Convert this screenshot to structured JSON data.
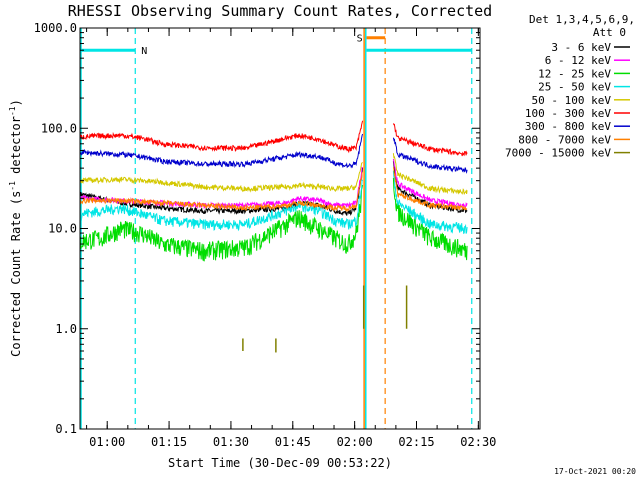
{
  "chart_data": {
    "type": "line",
    "title": "RHESSI Observing Summary Count Rates, Corrected",
    "xlabel": "Start Time (30-Dec-09 00:53:22)",
    "ylabel_main": "Corrected Count Rate (s",
    "ylabel_sup1": "-1",
    "ylabel_mid": " detector",
    "ylabel_sup2": "-1",
    "ylabel_end": ")",
    "yscale": "log",
    "ylim": [
      0.1,
      1000
    ],
    "xlim_minutes": [
      0,
      97
    ],
    "x_ticks": [
      {
        "minutes": 6.6,
        "label": "01:00"
      },
      {
        "minutes": 21.6,
        "label": "01:15"
      },
      {
        "minutes": 36.6,
        "label": "01:30"
      },
      {
        "minutes": 51.6,
        "label": "01:45"
      },
      {
        "minutes": 66.6,
        "label": "02:00"
      },
      {
        "minutes": 81.6,
        "label": "02:15"
      },
      {
        "minutes": 96.6,
        "label": "02:30"
      }
    ],
    "y_ticks": [
      {
        "value": 1000,
        "label": "1000.0"
      },
      {
        "value": 100,
        "label": "100.0"
      },
      {
        "value": 10,
        "label": "10.0"
      },
      {
        "value": 1,
        "label": "1.0"
      },
      {
        "value": 0.1,
        "label": "0.1"
      }
    ],
    "legend_header": [
      "Det 1,3,4,5,6,9,",
      "Att 0"
    ],
    "legend_position": "right",
    "series": [
      {
        "name": "3 - 6 keV",
        "color": "#000000",
        "x": [
          0,
          10,
          20,
          30,
          40,
          50,
          53,
          58,
          62,
          65,
          67,
          68.6,
          76,
          77,
          85,
          94
        ],
        "values": [
          22,
          18,
          16,
          15,
          15,
          16,
          18,
          17,
          15,
          14,
          16,
          40,
          45,
          25,
          17,
          15
        ]
      },
      {
        "name": "6 - 12 keV",
        "color": "#ff00ff",
        "x": [
          0,
          10,
          20,
          30,
          40,
          50,
          53,
          58,
          62,
          65,
          67,
          68.6,
          76,
          77,
          85,
          94
        ],
        "values": [
          20,
          19,
          18,
          17,
          17,
          18,
          20,
          19,
          17,
          17,
          18,
          45,
          50,
          28,
          19,
          17
        ]
      },
      {
        "name": "12 - 25 keV",
        "color": "#00dd00",
        "x": [
          0,
          5,
          10,
          15,
          20,
          30,
          40,
          50,
          53,
          58,
          62,
          65,
          67,
          68.6,
          76,
          77,
          85,
          94
        ],
        "values": [
          7.5,
          8,
          10,
          9,
          7,
          6,
          6.5,
          11,
          13,
          10,
          8,
          7,
          9,
          25,
          30,
          15,
          8,
          6
        ]
      },
      {
        "name": "25 - 50 keV",
        "color": "#00e5e5",
        "x": [
          0,
          5,
          10,
          15,
          20,
          30,
          40,
          50,
          53,
          58,
          62,
          65,
          67,
          68.6,
          76,
          77,
          85,
          94
        ],
        "values": [
          14,
          15,
          16,
          14,
          12,
          11,
          11,
          15,
          17,
          15,
          12,
          11,
          12,
          32,
          35,
          18,
          11,
          10
        ]
      },
      {
        "name": "50 - 100 keV",
        "color": "#d4c800",
        "x": [
          0,
          10,
          20,
          30,
          40,
          50,
          53,
          58,
          62,
          65,
          67,
          68.6,
          76,
          77,
          85,
          94
        ],
        "values": [
          30,
          31,
          29,
          26,
          25,
          26,
          27,
          26,
          25,
          25,
          26,
          50,
          55,
          35,
          25,
          23
        ]
      },
      {
        "name": "100 - 300 keV",
        "color": "#ff0000",
        "x": [
          0,
          5,
          10,
          15,
          20,
          30,
          40,
          50,
          53,
          58,
          62,
          65,
          67,
          68.6,
          76,
          77,
          85,
          94
        ],
        "values": [
          82,
          84,
          85,
          80,
          70,
          64,
          63,
          80,
          85,
          78,
          67,
          62,
          64,
          120,
          115,
          80,
          62,
          55
        ]
      },
      {
        "name": "300 - 800 keV",
        "color": "#0000cc",
        "x": [
          0,
          5,
          10,
          15,
          20,
          30,
          40,
          50,
          53,
          58,
          62,
          65,
          67,
          68.6,
          76,
          77,
          85,
          94
        ],
        "values": [
          58,
          56,
          55,
          52,
          47,
          44,
          44,
          52,
          55,
          52,
          45,
          42,
          44,
          90,
          85,
          55,
          42,
          38
        ]
      },
      {
        "name": "800 - 7000 keV",
        "color": "#ff8000",
        "x": [
          0,
          10,
          20,
          30,
          40,
          50,
          53,
          58,
          62,
          65,
          67,
          68.6,
          76,
          77,
          85,
          94
        ],
        "values": [
          19,
          19,
          18,
          17,
          16,
          17,
          18,
          17,
          16,
          16,
          17,
          38,
          42,
          22,
          17,
          16
        ]
      },
      {
        "name": "7000 - 15000 keV",
        "color": "#808000",
        "x": [
          39.5,
          39.5,
          47.5,
          47.5,
          68.8,
          68.8,
          79.2,
          79.2
        ],
        "values": [
          0.8,
          0.6,
          0.8,
          0.58,
          2.7,
          1.0,
          2.7,
          1.0
        ],
        "style": "spikes"
      }
    ],
    "annotations": {
      "saa_intervals": [
        {
          "minutes": [
            0.3,
            13.4
          ],
          "value": 600,
          "label": "N",
          "color": "#00e5e5"
        },
        {
          "minutes": [
            69.5,
            74.0
          ],
          "value": 800,
          "label": "S",
          "color": "#ff8000"
        }
      ],
      "night_bars": [
        {
          "minutes": [
            0.3,
            13.4
          ],
          "value": 600,
          "color": "#00e5e5"
        },
        {
          "minutes": [
            69.5,
            95.0
          ],
          "value": 600,
          "color": "#00e5e5"
        }
      ],
      "vertical_solid": [
        {
          "minutes": 68.9,
          "color": "#ff8000"
        },
        {
          "minutes": 69.3,
          "color": "#00e5e5"
        }
      ],
      "vertical_dashed": [
        {
          "minutes": 13.4,
          "color": "#00e5e5"
        },
        {
          "minutes": 74.0,
          "color": "#ff8000"
        },
        {
          "minutes": 95.0,
          "color": "#00e5e5"
        }
      ]
    },
    "footer_date": "17-Oct-2021 00:20"
  }
}
